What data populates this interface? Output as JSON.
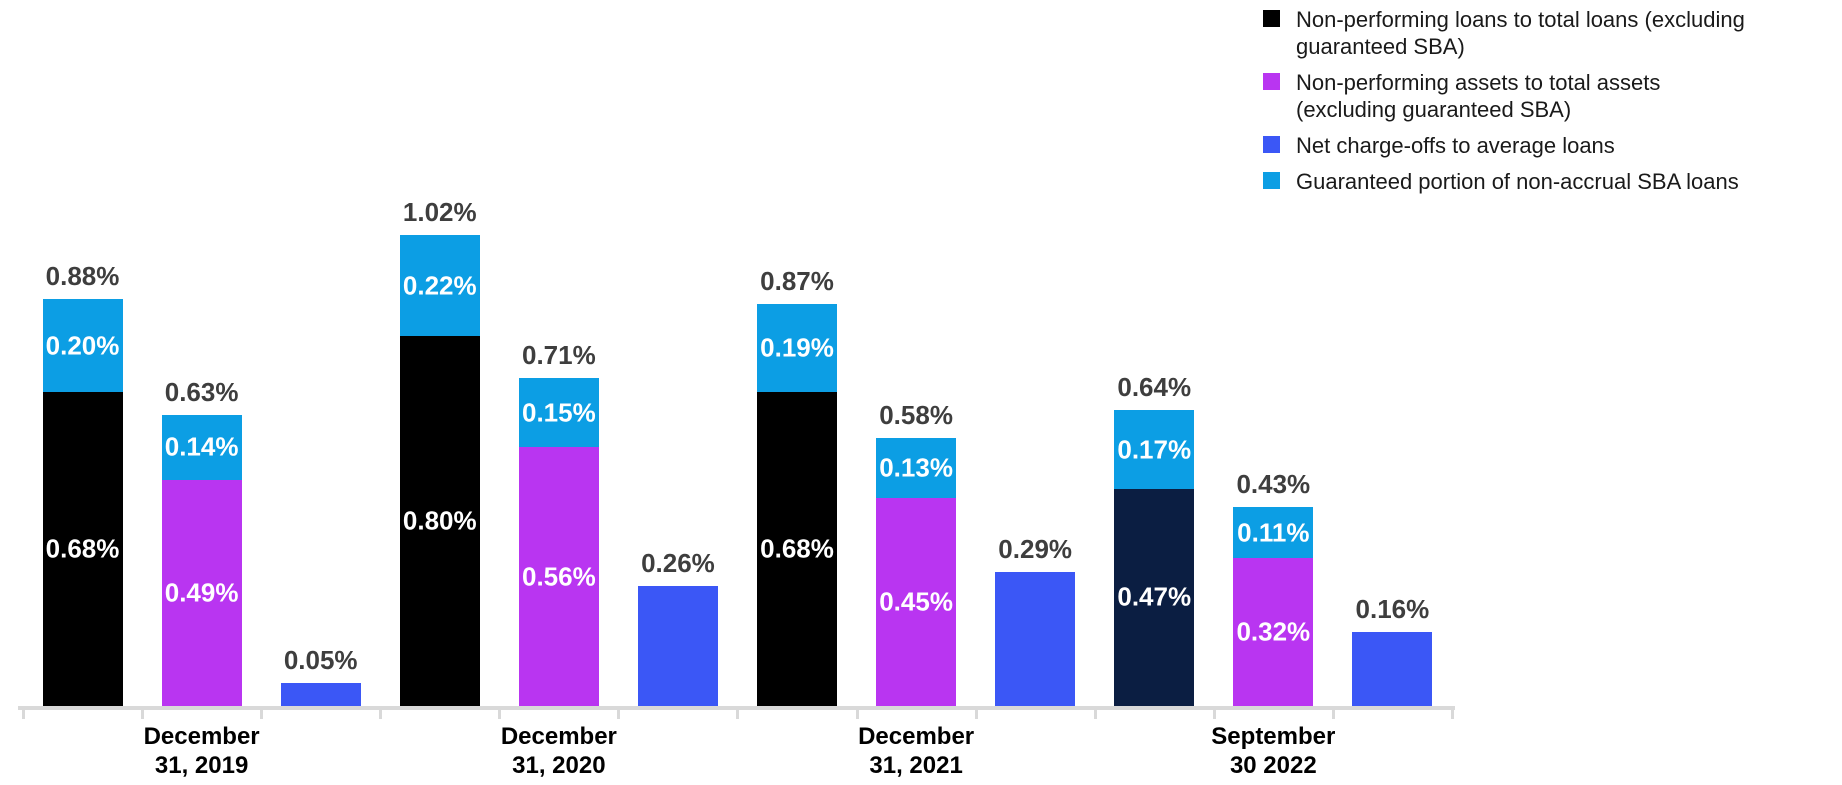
{
  "legend": {
    "items": [
      {
        "label": "Non-performing loans to total loans (excluding guaranteed SBA)",
        "color": "#000000"
      },
      {
        "label": "Non-performing assets to total assets (excluding guaranteed SBA)",
        "color": "#b935f1"
      },
      {
        "label": "Net charge-offs to average loans",
        "color": "#3b57f6"
      },
      {
        "label": "Guaranteed portion of non-accrual SBA loans",
        "color": "#0c9ee4"
      }
    ]
  },
  "colors": {
    "black_series": "#000000",
    "navy_highlight": "#0b1e42",
    "magenta_series": "#b935f1",
    "blue_series": "#3b57f6",
    "cyan_series": "#0c9ee4",
    "total_label": "#3e3e3e",
    "axis": "#d9d9d9"
  },
  "chart_data": {
    "type": "bar",
    "subtype": "stacked",
    "unit": "%",
    "title": "",
    "xlabel": "",
    "ylabel": "",
    "ylim": [
      0,
      1.1
    ],
    "grid": false,
    "y_axis_visible": false,
    "legend_position": "top-right",
    "categories": [
      "December 31, 2019",
      "December 31, 2020",
      "December 31, 2021",
      "September 30 2022"
    ],
    "series": [
      {
        "name": "Non-performing loans to total loans (excluding guaranteed SBA)",
        "color": "#000000"
      },
      {
        "name": "Non-performing assets to total assets (excluding guaranteed SBA)",
        "color": "#b935f1"
      },
      {
        "name": "Net charge-offs to average loans",
        "color": "#3b57f6"
      },
      {
        "name": "Guaranteed portion of non-accrual SBA loans",
        "color": "#0c9ee4"
      }
    ],
    "groups": [
      {
        "category": "December 31, 2019",
        "label_lines": "December\n31, 2019",
        "bars": [
          {
            "total": 0.88,
            "total_label": "0.88%",
            "segments": [
              {
                "series": "Non-performing loans to total loans (excluding guaranteed SBA)",
                "value": 0.68,
                "label": "0.68%",
                "color": "#000000"
              },
              {
                "series": "Guaranteed portion of non-accrual SBA loans",
                "value": 0.2,
                "label": "0.20%",
                "color": "#0c9ee4"
              }
            ]
          },
          {
            "total": 0.63,
            "total_label": "0.63%",
            "segments": [
              {
                "series": "Non-performing assets to total assets (excluding guaranteed SBA)",
                "value": 0.49,
                "label": "0.49%",
                "color": "#b935f1"
              },
              {
                "series": "Guaranteed portion of non-accrual SBA loans",
                "value": 0.14,
                "label": "0.14%",
                "color": "#0c9ee4"
              }
            ]
          },
          {
            "total": 0.05,
            "total_label": "0.05%",
            "segments": [
              {
                "series": "Net charge-offs to average loans",
                "value": 0.05,
                "label": "",
                "color": "#3b57f6"
              }
            ]
          }
        ]
      },
      {
        "category": "December 31, 2020",
        "label_lines": "December\n31, 2020",
        "bars": [
          {
            "total": 1.02,
            "total_label": "1.02%",
            "segments": [
              {
                "series": "Non-performing loans to total loans (excluding guaranteed SBA)",
                "value": 0.8,
                "label": "0.80%",
                "color": "#000000"
              },
              {
                "series": "Guaranteed portion of non-accrual SBA loans",
                "value": 0.22,
                "label": "0.22%",
                "color": "#0c9ee4"
              }
            ]
          },
          {
            "total": 0.71,
            "total_label": "0.71%",
            "segments": [
              {
                "series": "Non-performing assets to total assets (excluding guaranteed SBA)",
                "value": 0.56,
                "label": "0.56%",
                "color": "#b935f1"
              },
              {
                "series": "Guaranteed portion of non-accrual SBA loans",
                "value": 0.15,
                "label": "0.15%",
                "color": "#0c9ee4"
              }
            ]
          },
          {
            "total": 0.26,
            "total_label": "0.26%",
            "segments": [
              {
                "series": "Net charge-offs to average loans",
                "value": 0.26,
                "label": "",
                "color": "#3b57f6"
              }
            ]
          }
        ]
      },
      {
        "category": "December 31, 2021",
        "label_lines": "December\n31, 2021",
        "bars": [
          {
            "total": 0.87,
            "total_label": "0.87%",
            "segments": [
              {
                "series": "Non-performing loans to total loans (excluding guaranteed SBA)",
                "value": 0.68,
                "label": "0.68%",
                "color": "#000000"
              },
              {
                "series": "Guaranteed portion of non-accrual SBA loans",
                "value": 0.19,
                "label": "0.19%",
                "color": "#0c9ee4"
              }
            ]
          },
          {
            "total": 0.58,
            "total_label": "0.58%",
            "segments": [
              {
                "series": "Non-performing assets to total assets (excluding guaranteed SBA)",
                "value": 0.45,
                "label": "0.45%",
                "color": "#b935f1"
              },
              {
                "series": "Guaranteed portion of non-accrual SBA loans",
                "value": 0.13,
                "label": "0.13%",
                "color": "#0c9ee4"
              }
            ]
          },
          {
            "total": 0.29,
            "total_label": "0.29%",
            "segments": [
              {
                "series": "Net charge-offs to average loans",
                "value": 0.29,
                "label": "",
                "color": "#3b57f6"
              }
            ]
          }
        ]
      },
      {
        "category": "September 30 2022",
        "label_lines": "September\n30 2022",
        "bars": [
          {
            "total": 0.64,
            "total_label": "0.64%",
            "segments": [
              {
                "series": "Non-performing loans to total loans (excluding guaranteed SBA)",
                "value": 0.47,
                "label": "0.47%",
                "color": "#0b1e42"
              },
              {
                "series": "Guaranteed portion of non-accrual SBA loans",
                "value": 0.17,
                "label": "0.17%",
                "color": "#0c9ee4"
              }
            ]
          },
          {
            "total": 0.43,
            "total_label": "0.43%",
            "segments": [
              {
                "series": "Non-performing assets to total assets (excluding guaranteed SBA)",
                "value": 0.32,
                "label": "0.32%",
                "color": "#b935f1"
              },
              {
                "series": "Guaranteed portion of non-accrual SBA loans",
                "value": 0.11,
                "label": "0.11%",
                "color": "#0c9ee4"
              }
            ]
          },
          {
            "total": 0.16,
            "total_label": "0.16%",
            "segments": [
              {
                "series": "Net charge-offs to average loans",
                "value": 0.16,
                "label": "",
                "color": "#3b57f6"
              }
            ]
          }
        ]
      }
    ]
  }
}
